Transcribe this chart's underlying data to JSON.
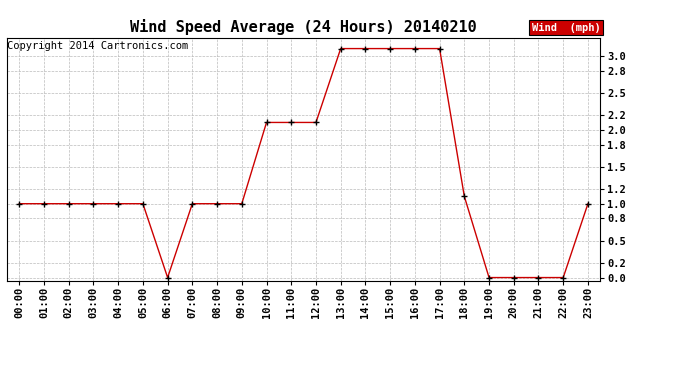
{
  "title": "Wind Speed Average (24 Hours) 20140210",
  "copyright": "Copyright 2014 Cartronics.com",
  "legend_label": "Wind  (mph)",
  "x_labels": [
    "00:00",
    "01:00",
    "02:00",
    "03:00",
    "04:00",
    "05:00",
    "06:00",
    "07:00",
    "08:00",
    "09:00",
    "10:00",
    "11:00",
    "12:00",
    "13:00",
    "14:00",
    "15:00",
    "16:00",
    "17:00",
    "18:00",
    "19:00",
    "20:00",
    "21:00",
    "22:00",
    "23:00"
  ],
  "y_values": [
    1.0,
    1.0,
    1.0,
    1.0,
    1.0,
    1.0,
    0.0,
    1.0,
    1.0,
    1.0,
    2.1,
    2.1,
    2.1,
    3.1,
    3.1,
    3.1,
    3.1,
    3.1,
    1.1,
    0.0,
    0.0,
    0.0,
    0.0,
    1.0
  ],
  "line_color": "#cc0000",
  "marker_color": "#000000",
  "legend_bg": "#cc0000",
  "legend_text_color": "#ffffff",
  "background_color": "#ffffff",
  "grid_color": "#bbbbbb",
  "ylim": [
    -0.05,
    3.25
  ],
  "yticks": [
    0.0,
    0.2,
    0.5,
    0.8,
    1.0,
    1.2,
    1.5,
    1.8,
    2.0,
    2.2,
    2.5,
    2.8,
    3.0
  ],
  "title_fontsize": 11,
  "axis_fontsize": 7.5,
  "copyright_fontsize": 7.5
}
